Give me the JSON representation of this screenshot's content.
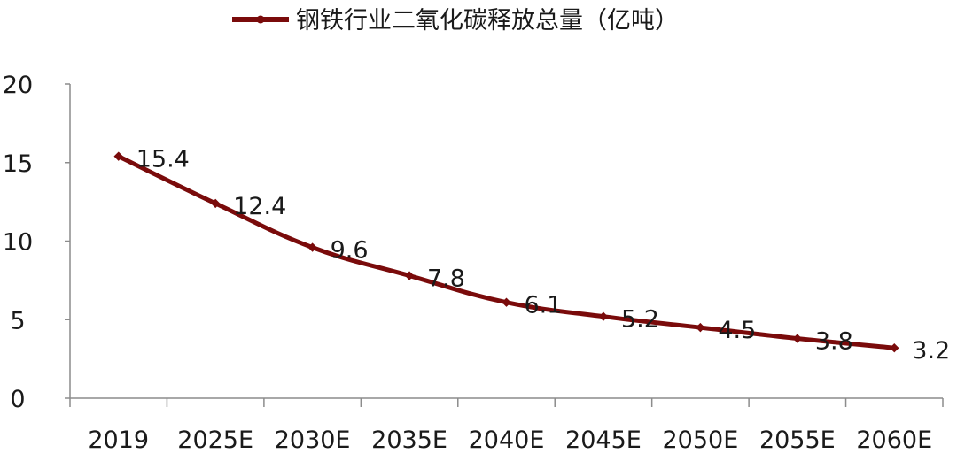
{
  "chart_data": {
    "type": "line",
    "title": "",
    "xlabel": "",
    "ylabel": "",
    "categories": [
      "2019",
      "2025E",
      "2030E",
      "2035E",
      "2040E",
      "2045E",
      "2050E",
      "2055E",
      "2060E"
    ],
    "series": [
      {
        "name": "钢铁行业二氧化碳释放总量（亿吨）",
        "values": [
          15.4,
          12.4,
          9.6,
          7.8,
          6.1,
          5.2,
          4.5,
          3.8,
          3.2
        ],
        "color": "#7a0b0b"
      }
    ],
    "data_labels": [
      "15.4",
      "12.4",
      "9.6",
      "7.8",
      "6.1",
      "5.2",
      "4.5",
      "3.8",
      "3.2"
    ],
    "ylim": [
      0,
      20
    ],
    "yticks": [
      0,
      5,
      10,
      15,
      20
    ],
    "grid": false,
    "legend": "top-center",
    "marker": "diamond"
  }
}
